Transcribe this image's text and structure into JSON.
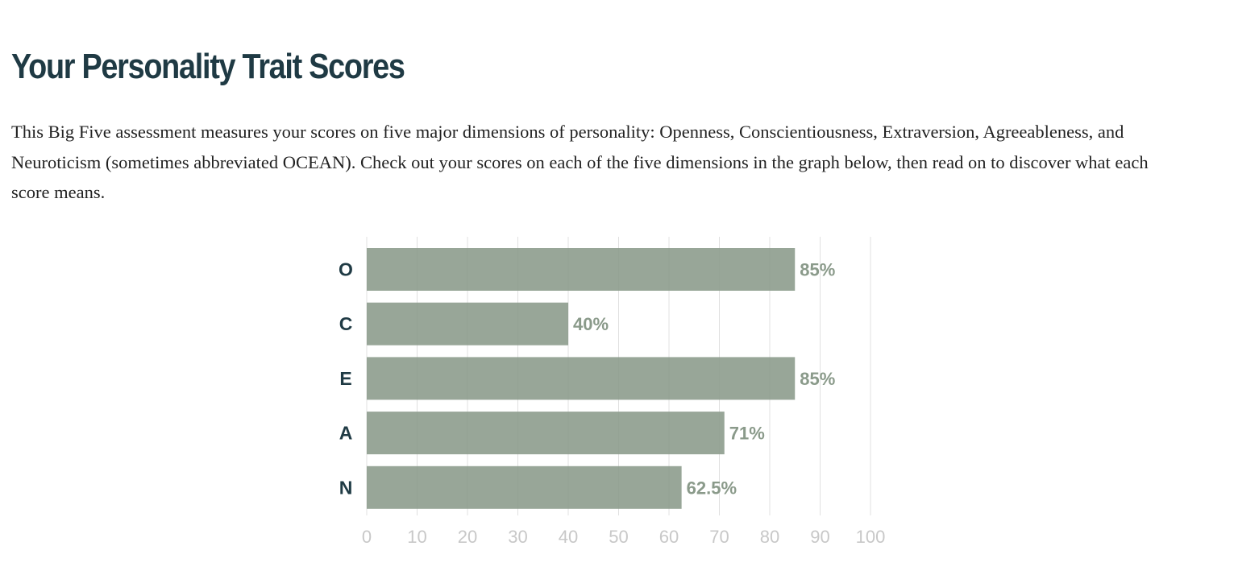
{
  "header": {
    "title": "Your Personality Trait Scores"
  },
  "intro": {
    "text": "This Big Five assessment measures your scores on five major dimensions of personality: Openness, Conscientiousness, Extraversion, Agreeableness, and Neuroticism (sometimes abbreviated OCEAN). Check out your scores on each of the five dimensions in the graph below, then read on to discover what each score means."
  },
  "colors": {
    "title": "#1f3a44",
    "bar": "#8a9a8a",
    "grid": "#e0e0e0",
    "tick": "#c8c8c8"
  },
  "chart_data": {
    "type": "bar",
    "orientation": "horizontal",
    "categories": [
      "O",
      "C",
      "E",
      "A",
      "N"
    ],
    "values": [
      85,
      40,
      85,
      71,
      62.5
    ],
    "value_labels": [
      "85%",
      "40%",
      "85%",
      "71%",
      "62.5%"
    ],
    "xlim": [
      0,
      100
    ],
    "xticks": [
      0,
      10,
      20,
      30,
      40,
      50,
      60,
      70,
      80,
      90,
      100
    ],
    "grid": true,
    "title": "",
    "xlabel": "",
    "ylabel": ""
  }
}
